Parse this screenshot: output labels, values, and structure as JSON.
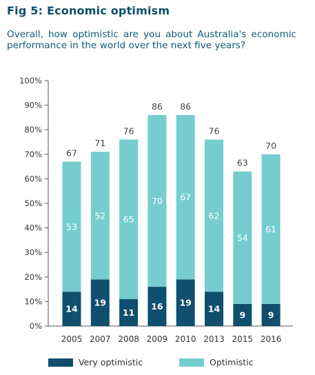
{
  "header": {
    "title": "Fig 5: Economic optimism",
    "question": "Overall, how optimistic are you about Australia's economic performance in the world over the next five years?"
  },
  "chart_data": {
    "type": "bar",
    "stacked": true,
    "categories": [
      "2005",
      "2007",
      "2008",
      "2009",
      "2010",
      "2013",
      "2015",
      "2016"
    ],
    "series": [
      {
        "name": "Very optimistic",
        "color": "#104f6d",
        "values": [
          14,
          19,
          11,
          16,
          19,
          14,
          9,
          9
        ]
      },
      {
        "name": "Optimistic",
        "color": "#76cdd0",
        "values": [
          53,
          52,
          65,
          70,
          67,
          62,
          54,
          61
        ]
      }
    ],
    "totals": [
      67,
      71,
      76,
      86,
      86,
      76,
      63,
      70
    ],
    "y_ticks": [
      "0%",
      "10%",
      "20%",
      "30%",
      "40%",
      "50%",
      "60%",
      "70%",
      "80%",
      "90%",
      "100%"
    ],
    "ylim": [
      0,
      100
    ],
    "grid": false,
    "legend": "bottom"
  }
}
